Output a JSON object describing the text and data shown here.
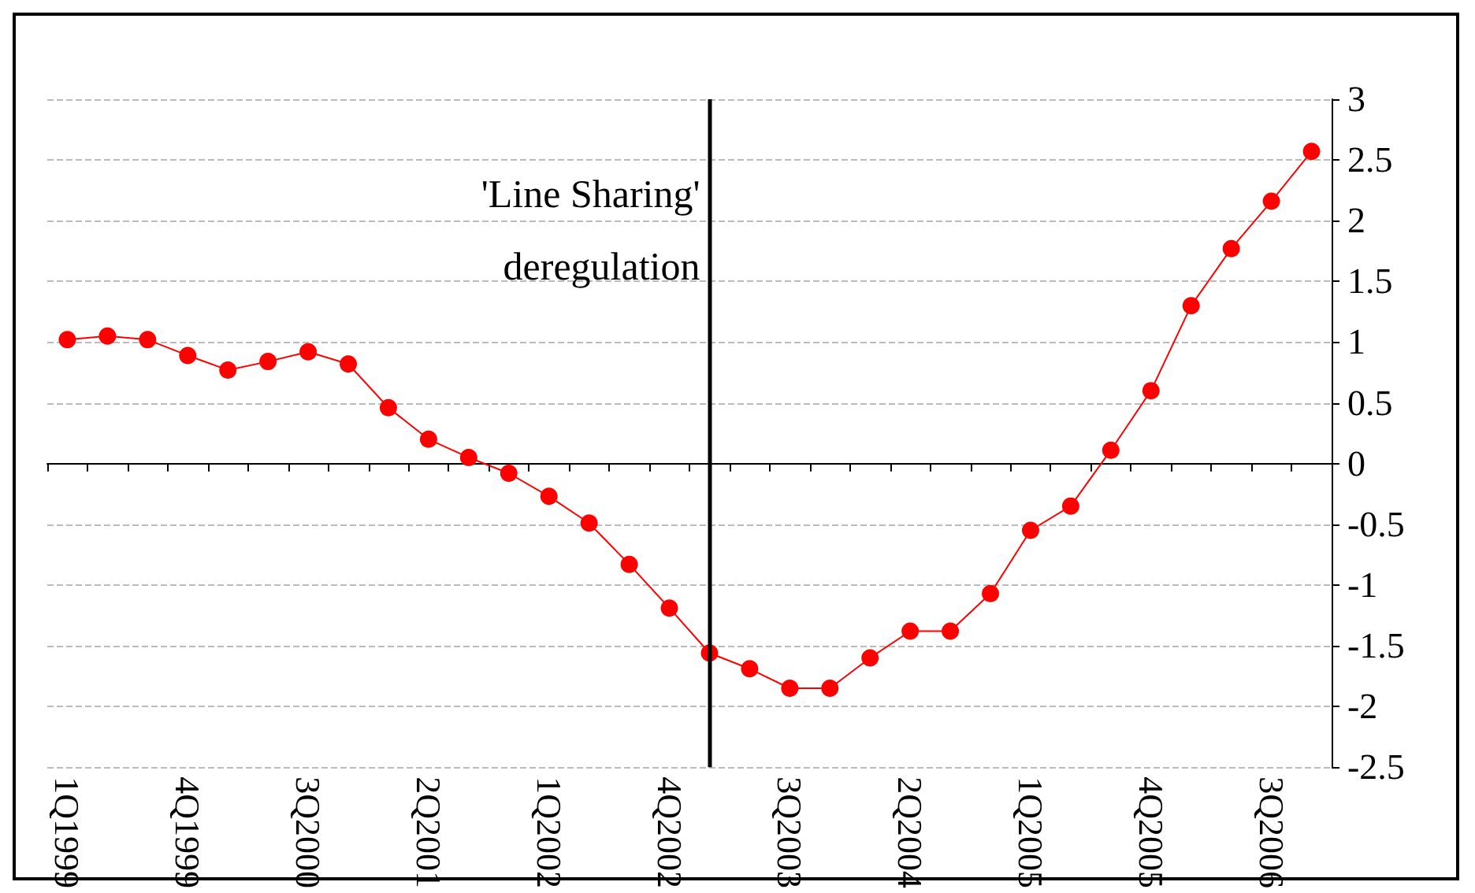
{
  "chart_data": {
    "type": "line",
    "categories": [
      "1Q1999",
      null,
      null,
      "4Q1999",
      null,
      null,
      "3Q2000",
      null,
      null,
      "2Q2001",
      null,
      null,
      "1Q2002",
      null,
      null,
      "4Q2002",
      null,
      null,
      "3Q2003",
      null,
      null,
      "2Q2004",
      null,
      null,
      "1Q2005",
      null,
      null,
      "4Q2005",
      null,
      null,
      "3Q2006",
      null
    ],
    "series": [
      {
        "color": "#ff0000",
        "values": [
          1.02,
          1.05,
          1.02,
          0.89,
          0.77,
          0.84,
          0.92,
          0.82,
          0.46,
          0.2,
          0.05,
          -0.08,
          -0.27,
          -0.49,
          -0.83,
          -1.19,
          -1.56,
          -1.69,
          -1.85,
          -1.85,
          -1.6,
          -1.38,
          -1.38,
          -1.07,
          -0.55,
          -0.35,
          0.11,
          0.6,
          1.3,
          1.77,
          2.16,
          2.57
        ]
      }
    ],
    "ylim": [
      -2.5,
      3
    ],
    "yticks": [
      -2.5,
      -2,
      -1.5,
      -1,
      -0.5,
      0,
      0.5,
      1,
      1.5,
      2,
      2.5,
      3
    ],
    "annotations": [
      "'Line Sharing'\nderegulation"
    ],
    "grid": "y",
    "marker": "circle",
    "line_style": "solid"
  }
}
